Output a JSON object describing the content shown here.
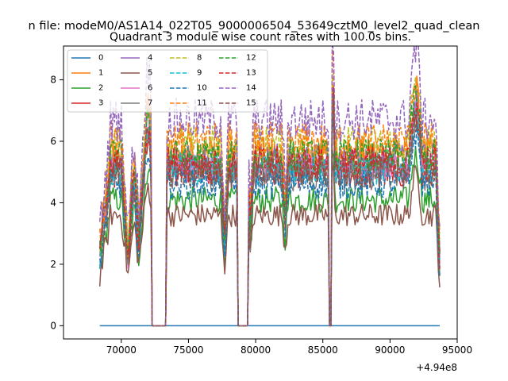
{
  "chart_data": {
    "type": "line",
    "suptitle": "n file: modeM0/AS1A14_022T05_9000006504_53649cztM0_level2_quad_clean",
    "title": "Quadrant 3 module wise count rates with 100.0s bins.",
    "xlabel": "",
    "ylabel": "",
    "x_offset_label": "+4.94e8",
    "xlim": [
      65700,
      95000
    ],
    "ylim": [
      -0.43,
      9.1
    ],
    "x_ticks": [
      70000,
      75000,
      80000,
      85000,
      90000,
      95000
    ],
    "x_tick_labels": [
      "70000",
      "75000",
      "80000",
      "85000",
      "90000",
      "95000"
    ],
    "y_ticks": [
      0,
      2,
      4,
      6,
      8
    ],
    "y_tick_labels": [
      "0",
      "2",
      "4",
      "6",
      "8"
    ],
    "x_range": [
      68400,
      93700
    ],
    "gaps": [
      [
        72300,
        73300
      ],
      [
        78700,
        79400
      ],
      [
        85500,
        85600
      ]
    ],
    "legend_position": "upper-left",
    "legend_columns": 4,
    "series": [
      {
        "name": "0",
        "color": "#1f77b4",
        "style": "solid",
        "level": 0.0
      },
      {
        "name": "1",
        "color": "#ff7f0e",
        "style": "solid",
        "level": 5.6
      },
      {
        "name": "2",
        "color": "#2ca02c",
        "style": "solid",
        "level": 4.1
      },
      {
        "name": "3",
        "color": "#d62728",
        "style": "solid",
        "level": 5.0
      },
      {
        "name": "4",
        "color": "#9467bd",
        "style": "solid",
        "level": 5.4
      },
      {
        "name": "5",
        "color": "#8c564b",
        "style": "solid",
        "level": 3.6
      },
      {
        "name": "6",
        "color": "#e377c2",
        "style": "solid",
        "level": 5.2
      },
      {
        "name": "7",
        "color": "#7f7f7f",
        "style": "solid",
        "level": 4.9
      },
      {
        "name": "8",
        "color": "#bcbd22",
        "style": "dashed",
        "level": 5.9
      },
      {
        "name": "9",
        "color": "#17becf",
        "style": "dashed",
        "level": 5.1
      },
      {
        "name": "10",
        "color": "#1f77b4",
        "style": "dashed",
        "level": 4.6
      },
      {
        "name": "11",
        "color": "#ff7f0e",
        "style": "dashed",
        "level": 6.0
      },
      {
        "name": "12",
        "color": "#2ca02c",
        "style": "dashed",
        "level": 5.5
      },
      {
        "name": "13",
        "color": "#d62728",
        "style": "dashed",
        "level": 5.3
      },
      {
        "name": "14",
        "color": "#9467bd",
        "style": "dashed",
        "level": 6.7
      },
      {
        "name": "15",
        "color": "#8c564b",
        "style": "dashed",
        "level": 5.0
      }
    ]
  }
}
